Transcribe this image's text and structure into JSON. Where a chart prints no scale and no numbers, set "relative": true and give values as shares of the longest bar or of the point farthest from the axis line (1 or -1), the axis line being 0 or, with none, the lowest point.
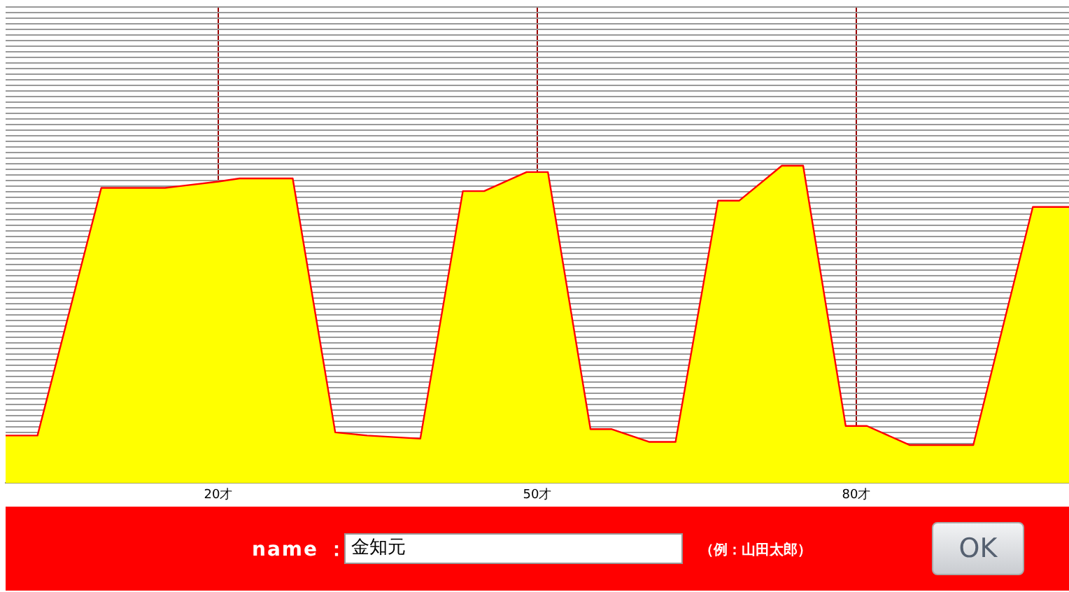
{
  "chart_data": {
    "type": "area",
    "relative": true,
    "x": [
      0,
      3,
      9,
      15,
      20,
      22,
      27,
      31,
      34,
      39,
      43,
      45,
      49,
      51,
      55,
      57,
      60.5,
      63,
      67,
      69,
      73,
      75,
      79,
      81,
      85,
      91,
      96.6,
      100
    ],
    "series": [
      {
        "color": "#ff0000",
        "values": [
          0.15,
          0.15,
          0.93,
          0.93,
          0.95,
          0.96,
          0.96,
          0.16,
          0.15,
          0.14,
          0.92,
          0.92,
          0.98,
          0.98,
          0.17,
          0.17,
          0.13,
          0.13,
          0.89,
          0.89,
          1,
          1,
          0.18,
          0.18,
          0.12,
          0.12,
          0.87,
          0.87
        ]
      }
    ],
    "xlim": [
      0,
      100
    ],
    "xticks": [
      {
        "value": 20,
        "label": "20才"
      },
      {
        "value": 50,
        "label": "50才"
      },
      {
        "value": 80,
        "label": "80才"
      }
    ],
    "grid": true,
    "legend": false,
    "annotations": [
      "name ：",
      "金知元",
      "（例：山田太郎）",
      "OK"
    ]
  }
}
